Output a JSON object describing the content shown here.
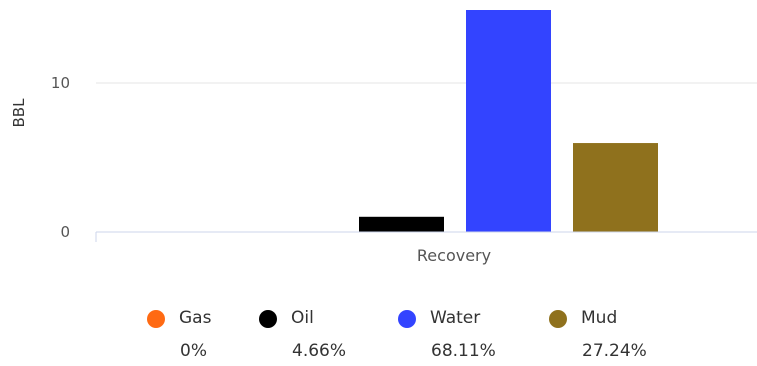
{
  "chart_data": {
    "type": "bar",
    "categories": [
      "Recovery"
    ],
    "series": [
      {
        "name": "Gas",
        "values": [
          0
        ],
        "color": "#ff6a13",
        "percent": "0%"
      },
      {
        "name": "Oil",
        "values": [
          1
        ],
        "color": "#000000",
        "percent": "4.66%"
      },
      {
        "name": "Water",
        "values": [
          14.6
        ],
        "color": "#3344ff",
        "percent": "68.11%"
      },
      {
        "name": "Mud",
        "values": [
          5.85
        ],
        "color": "#8f711d",
        "percent": "27.24%"
      }
    ],
    "y_ticks": [
      "0",
      "10"
    ],
    "ylabel": "BBL",
    "xlabel": "",
    "ylim": [
      0,
      14.6
    ],
    "grid": true,
    "legend_position": "bottom"
  }
}
